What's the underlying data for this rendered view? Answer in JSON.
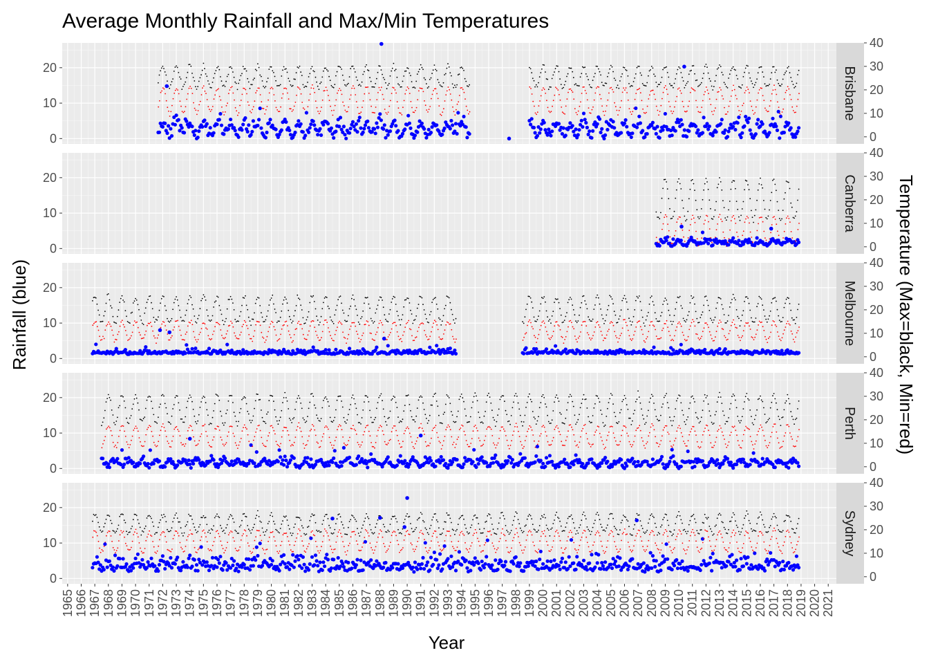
{
  "chart_data": {
    "type": "scatter",
    "title": "Average Monthly Rainfall and Max/Min Temperatures",
    "xlabel": "Year",
    "ylabel": "Rainfall (blue)",
    "y2label": "Temperature (Max=black, Min=red)",
    "xlim": [
      1964.6,
      2021.6
    ],
    "ylim": [
      -1.5,
      27
    ],
    "y2lim": [
      -3,
      40
    ],
    "x_ticks": [
      "1965",
      "1966",
      "1967",
      "1968",
      "1969",
      "1970",
      "1971",
      "1972",
      "1973",
      "1974",
      "1975",
      "1976",
      "1977",
      "1978",
      "1979",
      "1980",
      "1981",
      "1982",
      "1983",
      "1984",
      "1985",
      "1986",
      "1987",
      "1988",
      "1989",
      "1990",
      "1991",
      "1992",
      "1993",
      "1994",
      "1995",
      "1996",
      "1997",
      "1998",
      "1999",
      "2000",
      "2001",
      "2002",
      "2003",
      "2004",
      "2005",
      "2006",
      "2007",
      "2008",
      "2009",
      "2010",
      "2011",
      "2012",
      "2013",
      "2014",
      "2015",
      "2016",
      "2017",
      "2018",
      "2019",
      "2020",
      "2021"
    ],
    "y_ticks": [
      "0",
      "10",
      "20"
    ],
    "y2_ticks": [
      "0",
      "10",
      "20",
      "30",
      "40"
    ],
    "grid": true,
    "series_styles": [
      {
        "name": "rainfall",
        "color": "#0000ff",
        "marker": "dot"
      },
      {
        "name": "max_temperature",
        "color": "#000000",
        "marker": "dot"
      },
      {
        "name": "min_temperature",
        "color": "#ff0000",
        "marker": "dot"
      }
    ],
    "facets": [
      {
        "label": "Brisbane",
        "periods": [
          [
            1971.6,
            1994.6
          ],
          [
            1999.0,
            2018.9
          ]
        ],
        "rain": {
          "mean": 2.6,
          "summer_amp": 2.8,
          "spread": 2.6,
          "max_scatter": 10
        },
        "tmax": {
          "mean": 25.5,
          "amp": 4.3
        },
        "tmin": {
          "mean": 15.5,
          "amp": 5.5
        },
        "rain_highlights": [
          [
            1988.1,
            26.7
          ],
          [
            2010.4,
            20.3
          ],
          [
            1972.3,
            14.8
          ],
          [
            1997.5,
            0
          ]
        ]
      },
      {
        "label": "Canberra",
        "periods": [
          [
            2008.3,
            2018.9
          ]
        ],
        "rain": {
          "mean": 1.7,
          "summer_amp": 0.9,
          "spread": 1.4,
          "max_scatter": 5
        },
        "tmax": {
          "mean": 20.0,
          "amp": 8.5
        },
        "tmin": {
          "mean": 7.0,
          "amp": 6.0
        },
        "rain_highlights": [
          [
            2010.2,
            6.2
          ],
          [
            2016.8,
            5.6
          ]
        ]
      },
      {
        "label": "Melbourne",
        "periods": [
          [
            1966.8,
            1993.6
          ],
          [
            1998.5,
            2018.9
          ]
        ],
        "rain": {
          "mean": 1.7,
          "summer_amp": 0.2,
          "spread": 1.0,
          "max_scatter": 4
        },
        "tmax": {
          "mean": 20.0,
          "amp": 5.5
        },
        "tmin": {
          "mean": 11.0,
          "amp": 4.0
        },
        "rain_highlights": [
          [
            1971.8,
            8.0
          ],
          [
            1972.5,
            7.4
          ],
          [
            1988.3,
            5.6
          ]
        ]
      },
      {
        "label": "Perth",
        "periods": [
          [
            1967.5,
            2018.9
          ]
        ],
        "rain": {
          "mean": 1.5,
          "summer_amp": -1.4,
          "spread": 1.6,
          "max_scatter": 7
        },
        "tmax": {
          "mean": 24.5,
          "amp": 6.0
        },
        "tmin": {
          "mean": 13.0,
          "amp": 4.5
        },
        "rain_highlights": [
          [
            1991.0,
            9.3
          ],
          [
            1974.0,
            8.4
          ]
        ]
      },
      {
        "label": "Sydney",
        "periods": [
          [
            1966.8,
            2018.9
          ]
        ],
        "rain": {
          "mean": 3.6,
          "summer_amp": 0.8,
          "spread": 3.2,
          "max_scatter": 12
        },
        "tmax": {
          "mean": 22.5,
          "amp": 4.0
        },
        "tmin": {
          "mean": 15.0,
          "amp": 4.5
        },
        "rain_highlights": [
          [
            1990.0,
            22.7
          ],
          [
            1988.0,
            17.1
          ],
          [
            1989.8,
            14.5
          ],
          [
            1984.5,
            16.9
          ],
          [
            2006.9,
            16.4
          ]
        ]
      }
    ]
  }
}
